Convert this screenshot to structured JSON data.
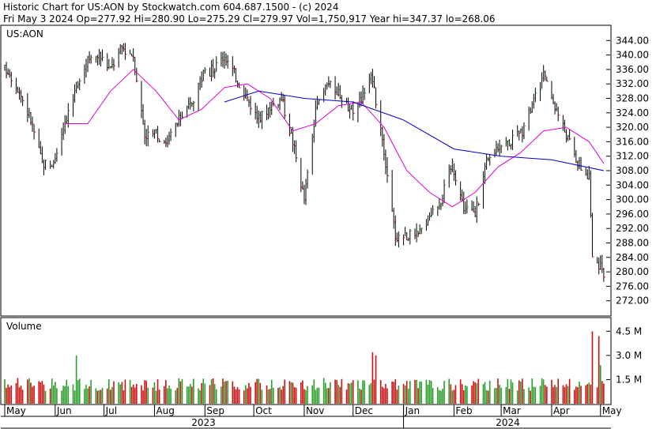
{
  "header": {
    "line1": "Historic Chart for US:AON by Stockwatch.com 604.687.1500 - (c) 2024",
    "line2": "Fri May  3 2024   Op=277.92   Hi=280.90   Lo=275.29   Cl=279.97   Vol=1,750,917   Year hi=347.37   lo=268.06"
  },
  "chart_data": [
    {
      "type": "ohlc",
      "symbol_label": "US:AON",
      "ylim": [
        268,
        348
      ],
      "y_ticks": [
        "344.00",
        "340.00",
        "336.00",
        "332.00",
        "328.00",
        "324.00",
        "320.00",
        "316.00",
        "312.00",
        "308.00",
        "304.00",
        "300.00",
        "296.00",
        "292.00",
        "288.00",
        "284.00",
        "280.00",
        "276.00",
        "272.00"
      ],
      "month_labels": [
        "May",
        "Jun",
        "Jul",
        "Aug",
        "Sep",
        "Oct",
        "Nov",
        "Dec",
        "Jan",
        "Feb",
        "Mar",
        "Apr",
        "May"
      ],
      "year_labels": [
        "2023",
        "2024"
      ],
      "approx_close_path": [
        {
          "date": "2023-05-03",
          "close": 336
        },
        {
          "date": "2023-05-10",
          "close": 330
        },
        {
          "date": "2023-05-17",
          "close": 322
        },
        {
          "date": "2023-05-24",
          "close": 310
        },
        {
          "date": "2023-05-31",
          "close": 310
        },
        {
          "date": "2023-06-07",
          "close": 322
        },
        {
          "date": "2023-06-14",
          "close": 330
        },
        {
          "date": "2023-06-21",
          "close": 338
        },
        {
          "date": "2023-06-28",
          "close": 340
        },
        {
          "date": "2023-07-05",
          "close": 336
        },
        {
          "date": "2023-07-12",
          "close": 342
        },
        {
          "date": "2023-07-19",
          "close": 340
        },
        {
          "date": "2023-07-26",
          "close": 318
        },
        {
          "date": "2023-08-02",
          "close": 318
        },
        {
          "date": "2023-08-09",
          "close": 316
        },
        {
          "date": "2023-08-16",
          "close": 322
        },
        {
          "date": "2023-08-23",
          "close": 326
        },
        {
          "date": "2023-08-30",
          "close": 334
        },
        {
          "date": "2023-09-06",
          "close": 336
        },
        {
          "date": "2023-09-13",
          "close": 340
        },
        {
          "date": "2023-09-20",
          "close": 334
        },
        {
          "date": "2023-09-27",
          "close": 328
        },
        {
          "date": "2023-10-04",
          "close": 322
        },
        {
          "date": "2023-10-11",
          "close": 326
        },
        {
          "date": "2023-10-18",
          "close": 328
        },
        {
          "date": "2023-10-25",
          "close": 316
        },
        {
          "date": "2023-11-01",
          "close": 300
        },
        {
          "date": "2023-11-08",
          "close": 324
        },
        {
          "date": "2023-11-15",
          "close": 332
        },
        {
          "date": "2023-11-22",
          "close": 330
        },
        {
          "date": "2023-11-29",
          "close": 324
        },
        {
          "date": "2023-12-06",
          "close": 328
        },
        {
          "date": "2023-12-13",
          "close": 334
        },
        {
          "date": "2023-12-20",
          "close": 312
        },
        {
          "date": "2023-12-27",
          "close": 290
        },
        {
          "date": "2024-01-03",
          "close": 290
        },
        {
          "date": "2024-01-10",
          "close": 290
        },
        {
          "date": "2024-01-17",
          "close": 296
        },
        {
          "date": "2024-01-24",
          "close": 300
        },
        {
          "date": "2024-01-31",
          "close": 310
        },
        {
          "date": "2024-02-07",
          "close": 298
        },
        {
          "date": "2024-02-14",
          "close": 296
        },
        {
          "date": "2024-02-21",
          "close": 310
        },
        {
          "date": "2024-02-28",
          "close": 315
        },
        {
          "date": "2024-03-06",
          "close": 316
        },
        {
          "date": "2024-03-13",
          "close": 318
        },
        {
          "date": "2024-03-20",
          "close": 326
        },
        {
          "date": "2024-03-27",
          "close": 334
        },
        {
          "date": "2024-04-03",
          "close": 326
        },
        {
          "date": "2024-04-10",
          "close": 318
        },
        {
          "date": "2024-04-17",
          "close": 310
        },
        {
          "date": "2024-04-24",
          "close": 306
        },
        {
          "date": "2024-04-26",
          "close": 284
        },
        {
          "date": "2024-05-03",
          "close": 280
        }
      ],
      "sma_magenta": [
        {
          "date": "2023-06-07",
          "value": 321
        },
        {
          "date": "2023-06-21",
          "value": 321
        },
        {
          "date": "2023-07-05",
          "value": 330
        },
        {
          "date": "2023-07-19",
          "value": 336
        },
        {
          "date": "2023-08-02",
          "value": 330
        },
        {
          "date": "2023-08-16",
          "value": 322
        },
        {
          "date": "2023-08-30",
          "value": 325
        },
        {
          "date": "2023-09-13",
          "value": 331
        },
        {
          "date": "2023-09-27",
          "value": 332
        },
        {
          "date": "2023-10-11",
          "value": 328
        },
        {
          "date": "2023-10-25",
          "value": 319
        },
        {
          "date": "2023-11-08",
          "value": 321
        },
        {
          "date": "2023-11-22",
          "value": 326
        },
        {
          "date": "2023-12-06",
          "value": 327
        },
        {
          "date": "2023-12-20",
          "value": 320
        },
        {
          "date": "2024-01-03",
          "value": 308
        },
        {
          "date": "2024-01-17",
          "value": 302
        },
        {
          "date": "2024-01-31",
          "value": 298
        },
        {
          "date": "2024-02-14",
          "value": 302
        },
        {
          "date": "2024-02-28",
          "value": 309
        },
        {
          "date": "2024-03-13",
          "value": 313
        },
        {
          "date": "2024-03-27",
          "value": 319
        },
        {
          "date": "2024-04-10",
          "value": 320
        },
        {
          "date": "2024-04-24",
          "value": 316
        },
        {
          "date": "2024-05-03",
          "value": 310
        }
      ],
      "sma_blue": [
        {
          "date": "2023-09-13",
          "value": 327
        },
        {
          "date": "2023-10-04",
          "value": 330
        },
        {
          "date": "2023-11-01",
          "value": 328
        },
        {
          "date": "2023-12-01",
          "value": 327
        },
        {
          "date": "2024-01-01",
          "value": 322
        },
        {
          "date": "2024-02-01",
          "value": 314
        },
        {
          "date": "2024-03-01",
          "value": 312
        },
        {
          "date": "2024-04-01",
          "value": 311
        },
        {
          "date": "2024-05-03",
          "value": 308
        }
      ]
    },
    {
      "type": "bar",
      "title": "Volume",
      "y_ticks": [
        "4.5 M",
        "3.0 M",
        "1.5 M"
      ],
      "ylim": [
        0,
        5.3
      ],
      "unit": "M",
      "notable_bars": [
        {
          "date": "2023-06-14",
          "volume": 3.0
        },
        {
          "date": "2023-12-13",
          "volume": 3.2
        },
        {
          "date": "2023-12-15",
          "volume": 3.0
        },
        {
          "date": "2024-04-26",
          "volume": 4.5
        },
        {
          "date": "2024-04-30",
          "volume": 4.2
        },
        {
          "date": "2024-05-01",
          "volume": 2.4
        }
      ],
      "typical_volume_range": [
        0.8,
        1.6
      ]
    }
  ],
  "colors": {
    "up": "#2a9e2a",
    "down": "#cc1111",
    "bar_body": "#000000",
    "sma_magenta": "#e000d0",
    "sma_blue": "#0000cc",
    "frame": "#000000"
  }
}
